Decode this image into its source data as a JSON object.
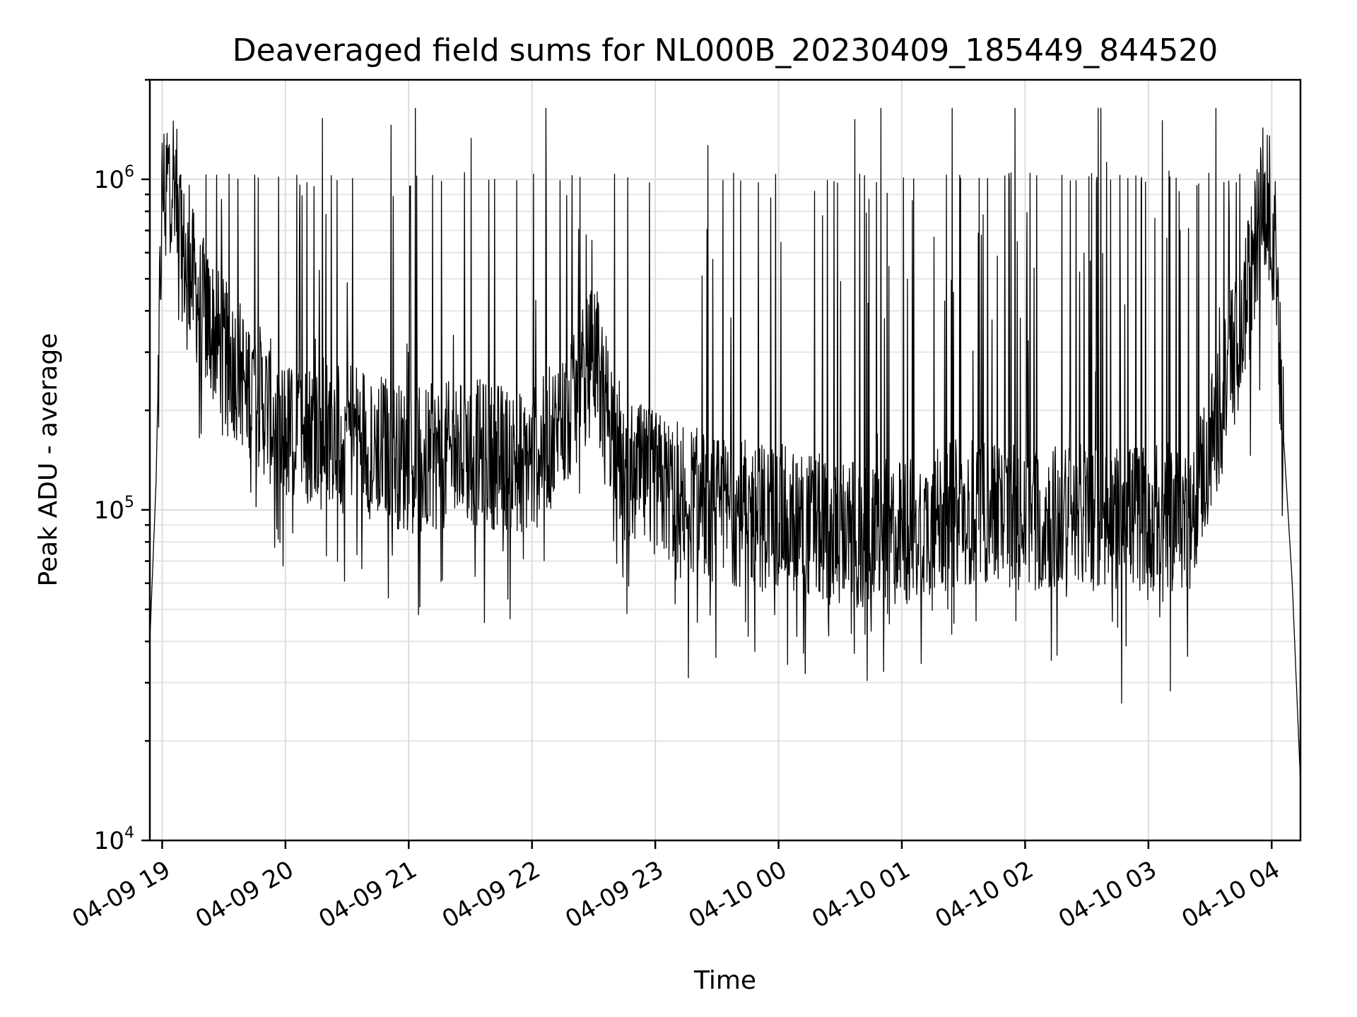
{
  "chart_data": {
    "type": "line",
    "title": "Deaveraged field sums for NL000B_20230409_185449_844520",
    "xlabel": "Time",
    "ylabel": "Peak ADU - average",
    "yscale": "log",
    "ylim": [
      10000,
      2000000
    ],
    "xlim": [
      "2023-04-09 18:54",
      "2023-04-10 04:14"
    ],
    "x_ticks": [
      "04-09 19",
      "04-09 20",
      "04-09 21",
      "04-09 22",
      "04-09 23",
      "04-10 00",
      "04-10 01",
      "04-10 02",
      "04-10 03",
      "04-10 04"
    ],
    "y_ticks": [
      {
        "value": 10000,
        "base": "10",
        "exp": "4"
      },
      {
        "value": 100000,
        "base": "10",
        "exp": "5"
      },
      {
        "value": 1000000,
        "base": "10",
        "exp": "6"
      }
    ],
    "grid": true,
    "series": [
      {
        "color": "#000000",
        "points": [
          [
            "2023-04-09 18:54",
            40000
          ],
          [
            "2023-04-09 18:57",
            120000
          ],
          [
            "2023-04-09 19:00",
            900000
          ],
          [
            "2023-04-09 19:05",
            1100000
          ],
          [
            "2023-04-09 19:10",
            600000
          ],
          [
            "2023-04-09 19:20",
            400000
          ],
          [
            "2023-04-09 19:30",
            300000
          ],
          [
            "2023-04-09 19:45",
            230000
          ],
          [
            "2023-04-09 20:00",
            170000
          ],
          [
            "2023-04-09 20:30",
            180000
          ],
          [
            "2023-04-09 21:00",
            140000
          ],
          [
            "2023-04-09 21:30",
            150000
          ],
          [
            "2023-04-09 22:00",
            140000
          ],
          [
            "2023-04-09 22:20",
            200000
          ],
          [
            "2023-04-09 22:30",
            300000
          ],
          [
            "2023-04-09 22:45",
            130000
          ],
          [
            "2023-04-09 23:00",
            120000
          ],
          [
            "2023-04-09 23:30",
            100000
          ],
          [
            "2023-04-10 00:00",
            95000
          ],
          [
            "2023-04-10 00:30",
            85000
          ],
          [
            "2023-04-10 01:00",
            85000
          ],
          [
            "2023-04-10 01:30",
            100000
          ],
          [
            "2023-04-10 02:00",
            95000
          ],
          [
            "2023-04-10 02:30",
            95000
          ],
          [
            "2023-04-10 03:00",
            95000
          ],
          [
            "2023-04-10 03:20",
            95000
          ],
          [
            "2023-04-10 03:35",
            200000
          ],
          [
            "2023-04-10 03:50",
            500000
          ],
          [
            "2023-04-10 03:55",
            900000
          ],
          [
            "2023-04-10 04:00",
            800000
          ],
          [
            "2023-04-10 04:05",
            200000
          ],
          [
            "2023-04-10 04:10",
            60000
          ],
          [
            "2023-04-10 04:14",
            15000
          ]
        ]
      }
    ]
  }
}
